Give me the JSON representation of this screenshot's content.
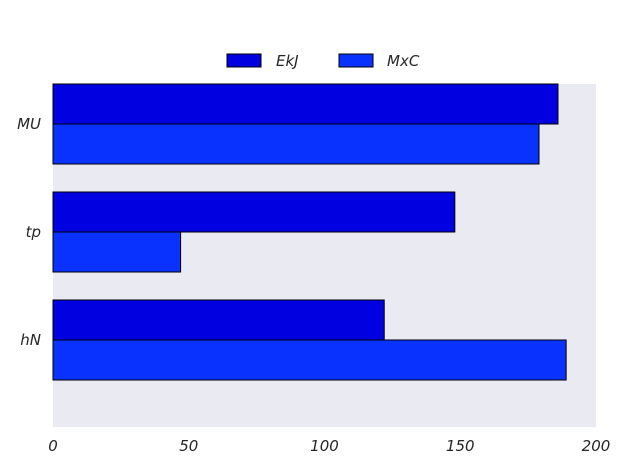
{
  "chart_data": {
    "type": "bar",
    "orientation": "horizontal",
    "categories": [
      "MU",
      "tp",
      "hN"
    ],
    "series": [
      {
        "name": "EkJ",
        "values": [
          186,
          148,
          122
        ],
        "color": "#0000e0"
      },
      {
        "name": "MxC",
        "values": [
          179,
          47,
          189
        ],
        "color": "#0a32ff"
      }
    ],
    "title": "",
    "xlabel": "",
    "ylabel": "",
    "xlim": [
      0,
      200
    ],
    "x_ticks": [
      0,
      50,
      100,
      150,
      200
    ],
    "grid": false,
    "legend_position": "top-center",
    "background": "#eaeaf2",
    "bar_edge": "#000000"
  }
}
